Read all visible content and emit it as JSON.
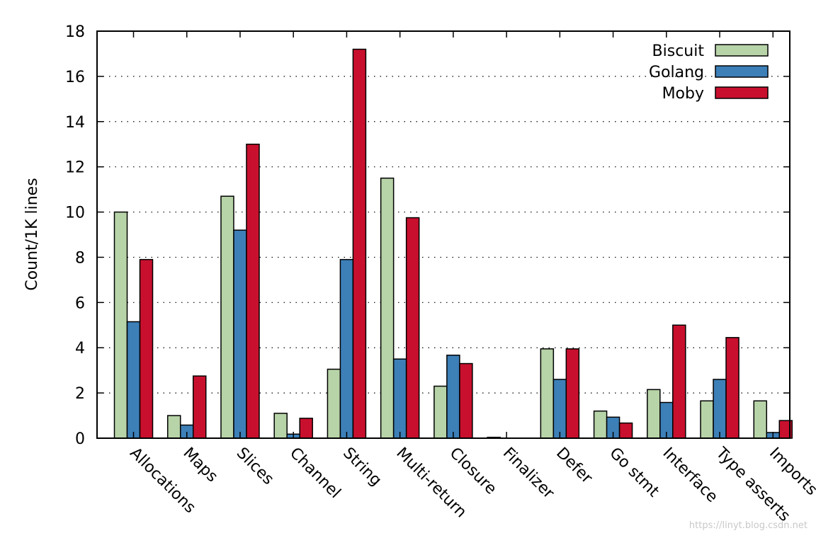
{
  "chart_data": {
    "type": "bar",
    "title": "",
    "xlabel": "",
    "ylabel": "Count/1K lines",
    "ylim": [
      0,
      18
    ],
    "yticks": [
      0,
      2,
      4,
      6,
      8,
      10,
      12,
      14,
      16,
      18
    ],
    "grid": "horizontal dotted",
    "legend_position": "top-right",
    "categories": [
      "Allocations",
      "Maps",
      "Slices",
      "Channel",
      "String",
      "Multi-return",
      "Closure",
      "Finalizer",
      "Defer",
      "Go stmt",
      "Interface",
      "Type asserts",
      "Imports"
    ],
    "series": [
      {
        "name": "Biscuit",
        "color": "#b7d3a8",
        "values": [
          10.0,
          1.0,
          10.7,
          1.1,
          3.05,
          11.5,
          2.3,
          0.04,
          3.95,
          1.2,
          2.15,
          1.65,
          1.65
        ]
      },
      {
        "name": "Golang",
        "color": "#3d7fb7",
        "values": [
          5.15,
          0.58,
          9.2,
          0.18,
          7.9,
          3.5,
          3.67,
          0.0,
          2.6,
          0.93,
          1.58,
          2.6,
          0.25
        ]
      },
      {
        "name": "Moby",
        "color": "#c8102e",
        "values": [
          7.9,
          2.75,
          13.0,
          0.88,
          17.2,
          9.75,
          3.3,
          0.0,
          3.95,
          0.67,
          5.0,
          4.45,
          0.78
        ]
      }
    ]
  },
  "watermark": "https://linyt.blog.csdn.net"
}
